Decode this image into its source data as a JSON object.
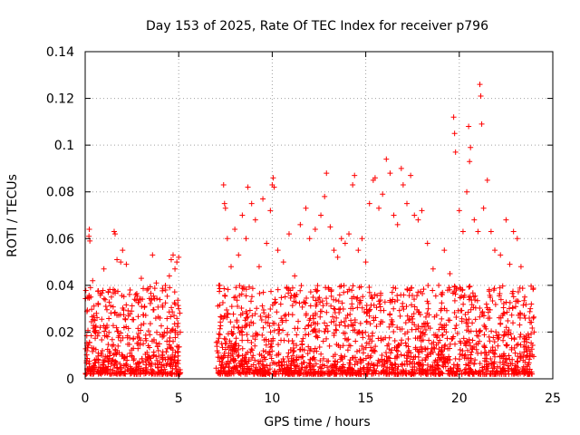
{
  "chart_data": {
    "type": "scatter",
    "title": "Day 153 of 2025, Rate Of TEC Index for receiver p796",
    "xlabel": "GPS time / hours",
    "ylabel": "ROTI / TECUs",
    "xlim": [
      0,
      25
    ],
    "ylim": [
      0,
      0.14
    ],
    "xticks": [
      0,
      5,
      10,
      15,
      20,
      25
    ],
    "xtick_labels": [
      "0",
      "5",
      "10",
      "15",
      "20",
      "25"
    ],
    "yticks": [
      0,
      0.02,
      0.04,
      0.06,
      0.08,
      0.1,
      0.12,
      0.14
    ],
    "ytick_labels": [
      "0",
      "0.02",
      "0.04",
      "0.06",
      "0.08",
      "0.1",
      "0.12",
      "0.14"
    ],
    "grid": true,
    "marker": "+",
    "color": "#ff0000",
    "data_gap_hours": [
      5.1,
      7.0
    ],
    "series": [
      {
        "points": [
          [
            0.1,
            0.012
          ],
          [
            0.2,
            0.061
          ],
          [
            0.22,
            0.064
          ],
          [
            0.25,
            0.059
          ],
          [
            0.3,
            0.035
          ],
          [
            0.4,
            0.042
          ],
          [
            0.6,
            0.028
          ],
          [
            0.8,
            0.022
          ],
          [
            1.0,
            0.047
          ],
          [
            1.2,
            0.018
          ],
          [
            1.4,
            0.035
          ],
          [
            1.55,
            0.063
          ],
          [
            1.6,
            0.062
          ],
          [
            1.7,
            0.051
          ],
          [
            1.9,
            0.05
          ],
          [
            2.0,
            0.055
          ],
          [
            2.2,
            0.049
          ],
          [
            2.4,
            0.038
          ],
          [
            2.7,
            0.036
          ],
          [
            3.0,
            0.043
          ],
          [
            3.3,
            0.038
          ],
          [
            3.6,
            0.053
          ],
          [
            3.8,
            0.041
          ],
          [
            4.0,
            0.026
          ],
          [
            4.3,
            0.038
          ],
          [
            4.5,
            0.044
          ],
          [
            4.6,
            0.051
          ],
          [
            4.7,
            0.053
          ],
          [
            4.8,
            0.047
          ],
          [
            4.9,
            0.05
          ],
          [
            5.0,
            0.052
          ],
          [
            0.5,
            0.008
          ],
          [
            1.1,
            0.005
          ],
          [
            2.1,
            0.009
          ],
          [
            3.1,
            0.007
          ],
          [
            4.1,
            0.006
          ],
          [
            0.3,
            0.003
          ],
          [
            1.7,
            0.002
          ],
          [
            2.8,
            0.004
          ],
          [
            3.9,
            0.003
          ],
          [
            7.2,
            0.04
          ],
          [
            7.3,
            0.015
          ],
          [
            7.4,
            0.083
          ],
          [
            7.45,
            0.075
          ],
          [
            7.5,
            0.073
          ],
          [
            7.6,
            0.06
          ],
          [
            7.8,
            0.048
          ],
          [
            8.0,
            0.064
          ],
          [
            8.2,
            0.053
          ],
          [
            8.4,
            0.07
          ],
          [
            8.6,
            0.06
          ],
          [
            8.7,
            0.082
          ],
          [
            8.9,
            0.075
          ],
          [
            9.1,
            0.068
          ],
          [
            9.3,
            0.048
          ],
          [
            9.5,
            0.077
          ],
          [
            9.7,
            0.058
          ],
          [
            9.9,
            0.072
          ],
          [
            10.0,
            0.083
          ],
          [
            10.05,
            0.086
          ],
          [
            10.1,
            0.082
          ],
          [
            10.3,
            0.055
          ],
          [
            10.6,
            0.05
          ],
          [
            10.9,
            0.062
          ],
          [
            11.2,
            0.044
          ],
          [
            11.5,
            0.066
          ],
          [
            11.8,
            0.073
          ],
          [
            12.0,
            0.06
          ],
          [
            12.3,
            0.064
          ],
          [
            12.6,
            0.07
          ],
          [
            12.8,
            0.078
          ],
          [
            12.9,
            0.088
          ],
          [
            13.1,
            0.065
          ],
          [
            13.3,
            0.055
          ],
          [
            13.5,
            0.052
          ],
          [
            13.7,
            0.06
          ],
          [
            13.9,
            0.058
          ],
          [
            14.1,
            0.062
          ],
          [
            14.3,
            0.083
          ],
          [
            14.4,
            0.087
          ],
          [
            14.6,
            0.055
          ],
          [
            14.8,
            0.06
          ],
          [
            15.0,
            0.05
          ],
          [
            15.2,
            0.075
          ],
          [
            15.4,
            0.085
          ],
          [
            15.5,
            0.086
          ],
          [
            15.7,
            0.073
          ],
          [
            15.9,
            0.079
          ],
          [
            16.1,
            0.094
          ],
          [
            16.3,
            0.088
          ],
          [
            16.5,
            0.07
          ],
          [
            16.7,
            0.066
          ],
          [
            16.9,
            0.09
          ],
          [
            17.0,
            0.083
          ],
          [
            17.2,
            0.075
          ],
          [
            17.4,
            0.087
          ],
          [
            17.6,
            0.07
          ],
          [
            17.8,
            0.068
          ],
          [
            18.0,
            0.072
          ],
          [
            18.3,
            0.058
          ],
          [
            18.6,
            0.047
          ],
          [
            18.9,
            0.04
          ],
          [
            19.2,
            0.055
          ],
          [
            19.5,
            0.045
          ],
          [
            19.7,
            0.112
          ],
          [
            19.75,
            0.105
          ],
          [
            19.8,
            0.097
          ],
          [
            20.0,
            0.072
          ],
          [
            20.2,
            0.063
          ],
          [
            20.4,
            0.08
          ],
          [
            20.5,
            0.108
          ],
          [
            20.55,
            0.093
          ],
          [
            20.6,
            0.099
          ],
          [
            20.8,
            0.068
          ],
          [
            21.0,
            0.063
          ],
          [
            21.1,
            0.126
          ],
          [
            21.15,
            0.121
          ],
          [
            21.2,
            0.109
          ],
          [
            21.3,
            0.073
          ],
          [
            21.5,
            0.085
          ],
          [
            21.7,
            0.063
          ],
          [
            21.9,
            0.055
          ],
          [
            22.2,
            0.053
          ],
          [
            22.5,
            0.068
          ],
          [
            22.7,
            0.049
          ],
          [
            22.9,
            0.063
          ],
          [
            23.1,
            0.06
          ],
          [
            23.3,
            0.048
          ],
          [
            23.5,
            0.035
          ],
          [
            23.8,
            0.03
          ],
          [
            24.0,
            0.02
          ],
          [
            7.7,
            0.005
          ],
          [
            9.0,
            0.006
          ],
          [
            10.4,
            0.004
          ],
          [
            11.6,
            0.005
          ],
          [
            12.7,
            0.003
          ],
          [
            13.8,
            0.006
          ],
          [
            15.1,
            0.004
          ],
          [
            16.4,
            0.003
          ],
          [
            17.5,
            0.005
          ],
          [
            18.7,
            0.004
          ],
          [
            19.9,
            0.006
          ],
          [
            20.7,
            0.003
          ],
          [
            21.8,
            0.002
          ],
          [
            22.8,
            0.004
          ],
          [
            23.6,
            0.003
          ]
        ]
      }
    ]
  }
}
